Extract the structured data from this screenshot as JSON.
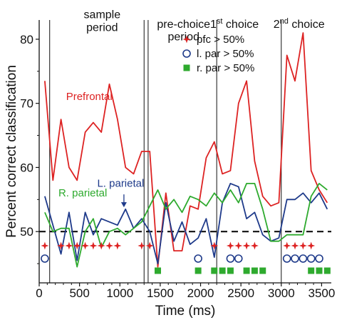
{
  "chart_data": {
    "type": "line",
    "xlabel": "Time (ms)",
    "ylabel": "Percent correct classification",
    "xlim": [
      0,
      3620
    ],
    "ylim": [
      42,
      83
    ],
    "xticks": [
      0,
      500,
      1000,
      1500,
      2000,
      2500,
      3000,
      3500
    ],
    "yticks": [
      50,
      60,
      70,
      80
    ],
    "chance_level": 50,
    "period_labels": [
      {
        "text": "sample",
        "x": 780,
        "y": 83.3
      },
      {
        "text": "period",
        "x": 780,
        "y": 81.3
      },
      {
        "text": "pre-choice",
        "x": 1790,
        "y": 81.8
      },
      {
        "text": "period",
        "x": 1790,
        "y": 79.8
      },
      {
        "text": "1",
        "sup": "st",
        "rest": " choice",
        "x": 2420,
        "y": 81.8
      },
      {
        "text": "2",
        "sup": "nd",
        "rest": " choice",
        "x": 3220,
        "y": 81.8
      }
    ],
    "vlines": [
      130,
      1300,
      1350,
      2200,
      3000
    ],
    "series": [
      {
        "name": "Prefrontal",
        "color": "#dd2222",
        "x": [
          70,
          170,
          270,
          370,
          470,
          570,
          670,
          770,
          870,
          970,
          1070,
          1170,
          1270,
          1370,
          1470,
          1570,
          1670,
          1770,
          1870,
          1970,
          2070,
          2170,
          2270,
          2370,
          2470,
          2570,
          2670,
          2770,
          2870,
          2970,
          3070,
          3170,
          3270,
          3370,
          3470,
          3570
        ],
        "values": [
          73.5,
          58.0,
          67.5,
          60.0,
          58.0,
          65.5,
          67.0,
          65.5,
          73.0,
          67.5,
          60.0,
          59.0,
          62.5,
          62.5,
          44.5,
          56.0,
          47.0,
          47.0,
          54.0,
          53.5,
          61.5,
          64.0,
          59.0,
          59.5,
          70.0,
          73.5,
          61.0,
          55.5,
          54.0,
          54.5,
          77.5,
          73.5,
          81.0,
          59.5,
          56.5,
          54.5
        ]
      },
      {
        "name": "L. parietal",
        "color": "#1e3a8a",
        "x": [
          70,
          170,
          270,
          370,
          470,
          570,
          670,
          770,
          870,
          970,
          1070,
          1170,
          1270,
          1370,
          1470,
          1570,
          1670,
          1770,
          1870,
          1970,
          2070,
          2170,
          2270,
          2370,
          2470,
          2570,
          2670,
          2770,
          2870,
          2970,
          3070,
          3170,
          3270,
          3370,
          3470,
          3570
        ],
        "values": [
          55.5,
          51.0,
          46.5,
          53.0,
          45.5,
          53.0,
          49.5,
          52.0,
          51.5,
          51.0,
          53.5,
          50.5,
          52.0,
          50.0,
          45.0,
          54.5,
          48.5,
          51.5,
          48.0,
          49.0,
          52.0,
          46.0,
          54.5,
          57.5,
          57.0,
          52.0,
          53.0,
          49.5,
          48.5,
          49.0,
          55.0,
          55.0,
          56.0,
          54.5,
          56.0,
          53.5
        ]
      },
      {
        "name": "R. parietal",
        "color": "#2eaa2e",
        "x": [
          70,
          170,
          270,
          370,
          470,
          570,
          670,
          770,
          870,
          970,
          1070,
          1170,
          1270,
          1370,
          1470,
          1570,
          1670,
          1770,
          1870,
          1970,
          2070,
          2170,
          2270,
          2370,
          2470,
          2570,
          2670,
          2770,
          2870,
          2970,
          3070,
          3170,
          3270,
          3370,
          3470,
          3570
        ],
        "values": [
          53.0,
          50.0,
          50.5,
          50.5,
          44.5,
          50.0,
          52.0,
          47.5,
          50.0,
          50.5,
          49.5,
          50.5,
          51.5,
          54.0,
          56.5,
          53.5,
          55.0,
          53.0,
          55.5,
          55.0,
          54.0,
          56.0,
          54.5,
          56.5,
          54.5,
          57.5,
          57.5,
          53.5,
          48.5,
          48.5,
          49.5,
          49.5,
          49.5,
          55.5,
          57.5,
          56.5
        ]
      }
    ],
    "series_labels": [
      {
        "name": "Prefrontal",
        "x": 620,
        "y": 70.5
      },
      {
        "name": "L. parietal",
        "x": 1010,
        "y": 57.0
      },
      {
        "name": "R. parietal",
        "x": 540,
        "y": 55.5
      }
    ],
    "arrow": {
      "x1": 1050,
      "y1": 55.8,
      "x2": 1050,
      "y2": 53.8
    },
    "legend": {
      "position": "top-right",
      "entries": [
        {
          "label": "pfc > 50%",
          "marker": "star",
          "color": "#dd2222"
        },
        {
          "label": "l. par > 50%",
          "marker": "circle",
          "color": "#1e3a8a"
        },
        {
          "label": "r. par > 50%",
          "marker": "square",
          "color": "#2eaa2e"
        }
      ]
    },
    "significance_markers": {
      "pfc": [
        70,
        270,
        370,
        470,
        570,
        670,
        770,
        870,
        970,
        1270,
        1370,
        2170,
        2370,
        2470,
        2570,
        2670,
        3070,
        3170,
        3270,
        3370
      ],
      "lpar": [
        70,
        1970,
        2370,
        2470,
        3070,
        3170,
        3270,
        3370,
        3470
      ],
      "rpar": [
        1470,
        1970,
        2170,
        2270,
        2370,
        2570,
        2670,
        2770,
        3370,
        3470,
        3570
      ]
    },
    "grid": false
  }
}
